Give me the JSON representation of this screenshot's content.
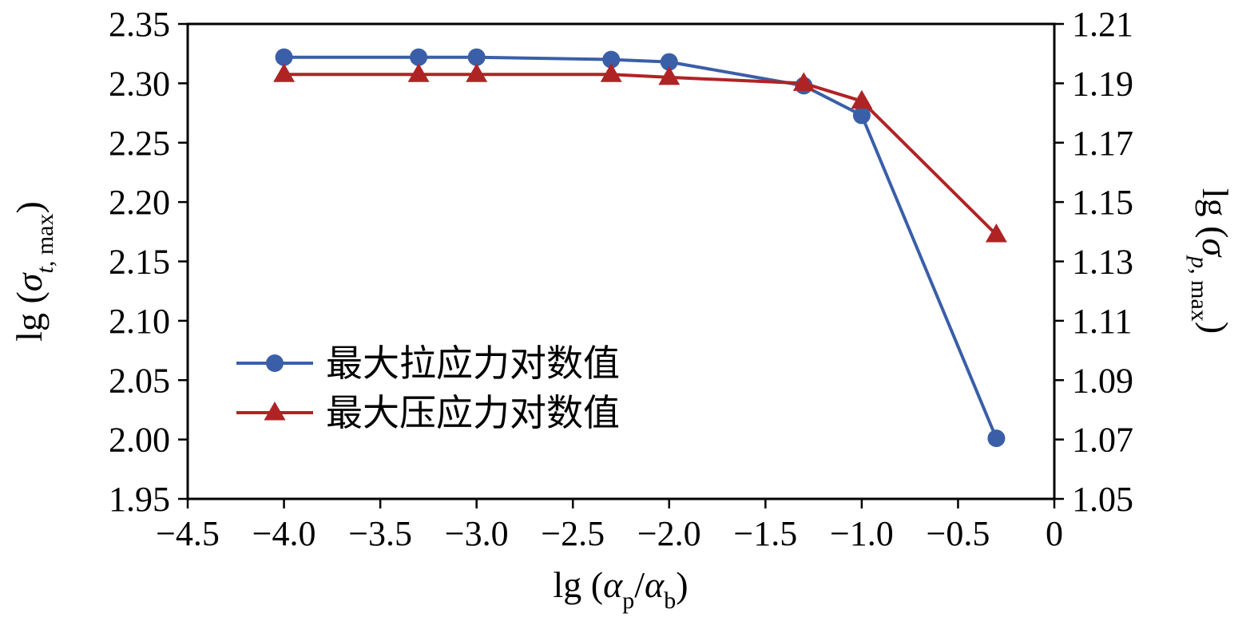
{
  "figure": {
    "background": "#ffffff",
    "axis_color": "#000000"
  },
  "axes": {
    "x_title": {
      "pre": "lg (",
      "alpha_p": "α",
      "sub_p": "p",
      "slash": "/",
      "alpha_b": "α",
      "sub_b": "b",
      "post": ")"
    },
    "left_title": {
      "pre": "lg (",
      "sigma": "σ",
      "sub_var": "t",
      "sub_rest": ", max",
      "post": ")"
    },
    "right_title": {
      "pre": "lg (",
      "sigma": "σ",
      "sub_var": "p",
      "sub_rest": ", max",
      "post": ")"
    }
  },
  "chart_data": {
    "type": "line",
    "title": "",
    "xlabel": "lg (αp/αb)",
    "ylabel_left": "lg (σt, max)",
    "ylabel_right": "lg (σp, max)",
    "xlim": [
      -4.5,
      0
    ],
    "ylim_left": [
      1.95,
      2.35
    ],
    "ylim_right": [
      1.05,
      1.21
    ],
    "grid": false,
    "legend_position": "inside-center-left",
    "xticks": [
      -4.5,
      -4.0,
      -3.5,
      -3.0,
      -2.5,
      -2.0,
      -1.5,
      -1.0,
      -0.5,
      0
    ],
    "xtick_labels": [
      "−4.5",
      "−4.0",
      "−3.5",
      "−3.0",
      "−2.5",
      "−2.0",
      "−1.5",
      "−1.0",
      "−0.5",
      "0"
    ],
    "yticks_left": [
      1.95,
      2.0,
      2.05,
      2.1,
      2.15,
      2.2,
      2.25,
      2.3,
      2.35
    ],
    "ytick_left_labels": [
      "1.95",
      "2.00",
      "2.05",
      "2.10",
      "2.15",
      "2.20",
      "2.25",
      "2.30",
      "2.35"
    ],
    "yticks_right": [
      1.05,
      1.07,
      1.09,
      1.11,
      1.13,
      1.15,
      1.17,
      1.19,
      1.21
    ],
    "ytick_right_labels": [
      "1.05",
      "1.07",
      "1.09",
      "1.11",
      "1.13",
      "1.15",
      "1.17",
      "1.19",
      "1.21"
    ],
    "x": [
      -4.0,
      -3.301,
      -3.0,
      -2.301,
      -2.0,
      -1.301,
      -1.0,
      -0.301
    ],
    "series": [
      {
        "name": "最大拉应力对数值",
        "axis": "left",
        "marker": "circle",
        "color": "#3a5fa8",
        "values": [
          2.322,
          2.322,
          2.322,
          2.32,
          2.318,
          2.298,
          2.273,
          2.001
        ]
      },
      {
        "name": "最大压应力对数值",
        "axis": "right",
        "marker": "triangle",
        "color": "#b02325",
        "values": [
          1.193,
          1.193,
          1.193,
          1.193,
          1.192,
          1.19,
          1.184,
          1.139
        ]
      }
    ]
  }
}
